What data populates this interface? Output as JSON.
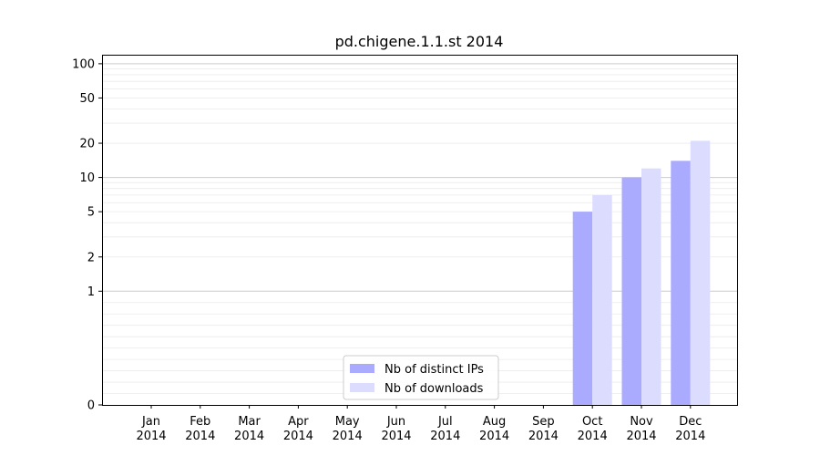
{
  "chart_data": {
    "type": "bar",
    "title": "pd.chigene.1.1.st 2014",
    "xlabel": "",
    "ylabel": "",
    "categories": [
      [
        "Jan",
        "2014"
      ],
      [
        "Feb",
        "2014"
      ],
      [
        "Mar",
        "2014"
      ],
      [
        "Apr",
        "2014"
      ],
      [
        "May",
        "2014"
      ],
      [
        "Jun",
        "2014"
      ],
      [
        "Jul",
        "2014"
      ],
      [
        "Aug",
        "2014"
      ],
      [
        "Sep",
        "2014"
      ],
      [
        "Oct",
        "2014"
      ],
      [
        "Nov",
        "2014"
      ],
      [
        "Dec",
        "2014"
      ]
    ],
    "series": [
      {
        "name": "Nb of distinct IPs",
        "color": "#aaaaff",
        "values": [
          0,
          0,
          0,
          0,
          0,
          0,
          0,
          0,
          0,
          5,
          10,
          14
        ]
      },
      {
        "name": "Nb of downloads",
        "color": "#dcdcff",
        "values": [
          0,
          0,
          0,
          0,
          0,
          0,
          0,
          0,
          0,
          7,
          12,
          21
        ]
      }
    ],
    "yscale": "symlog",
    "ylim": [
      0,
      120
    ],
    "yticks": [
      0,
      1,
      2,
      5,
      10,
      20,
      50,
      100
    ],
    "grid": true,
    "legend_position": "bottom-center"
  }
}
